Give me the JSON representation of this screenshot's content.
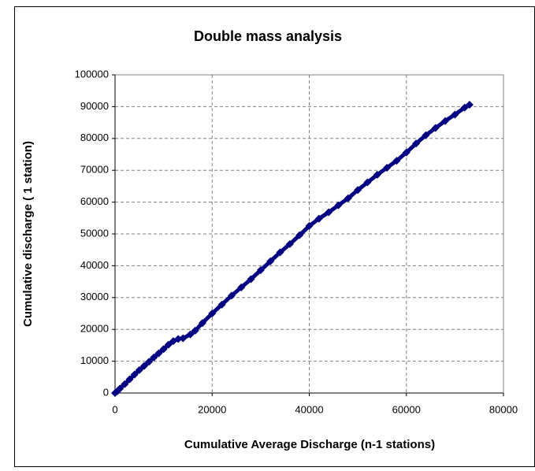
{
  "chart_data": {
    "type": "scatter",
    "title": "Double mass analysis",
    "x_label": "Cumulative Average Discharge (n-1 stations)",
    "y_label": "Cumulative discharge ( 1 station)",
    "xlim": [
      0,
      80000
    ],
    "xticks": [
      0,
      20000,
      40000,
      60000,
      80000
    ],
    "ylim": [
      0,
      100000
    ],
    "yticks": [
      0,
      10000,
      20000,
      30000,
      40000,
      50000,
      60000,
      70000,
      80000,
      90000,
      100000
    ],
    "grid": true,
    "series": [
      {
        "color": "#000080",
        "x": [
          0,
          500,
          1000,
          2000,
          3000,
          4000,
          5000,
          6000,
          7000,
          8000,
          9000,
          10000,
          11000,
          12000,
          13000,
          14000,
          15500,
          16500,
          18000,
          20000,
          22000,
          24000,
          26000,
          28000,
          30000,
          32000,
          34000,
          36000,
          38000,
          40000,
          42000,
          44000,
          46000,
          48000,
          50000,
          52000,
          54000,
          56000,
          58000,
          60000,
          62000,
          64000,
          66000,
          68000,
          70000,
          72000,
          73000
        ],
        "values": [
          0,
          600,
          1400,
          2800,
          4300,
          5800,
          7200,
          8500,
          9800,
          11200,
          12500,
          13800,
          15200,
          16300,
          17000,
          17200,
          18400,
          19600,
          22000,
          25000,
          27800,
          30600,
          33200,
          35800,
          38600,
          41400,
          44200,
          46800,
          49600,
          52500,
          54800,
          56800,
          59000,
          61200,
          63800,
          66200,
          68600,
          70800,
          73000,
          75600,
          78400,
          81000,
          83300,
          85500,
          87500,
          89700,
          90600
        ]
      }
    ]
  }
}
